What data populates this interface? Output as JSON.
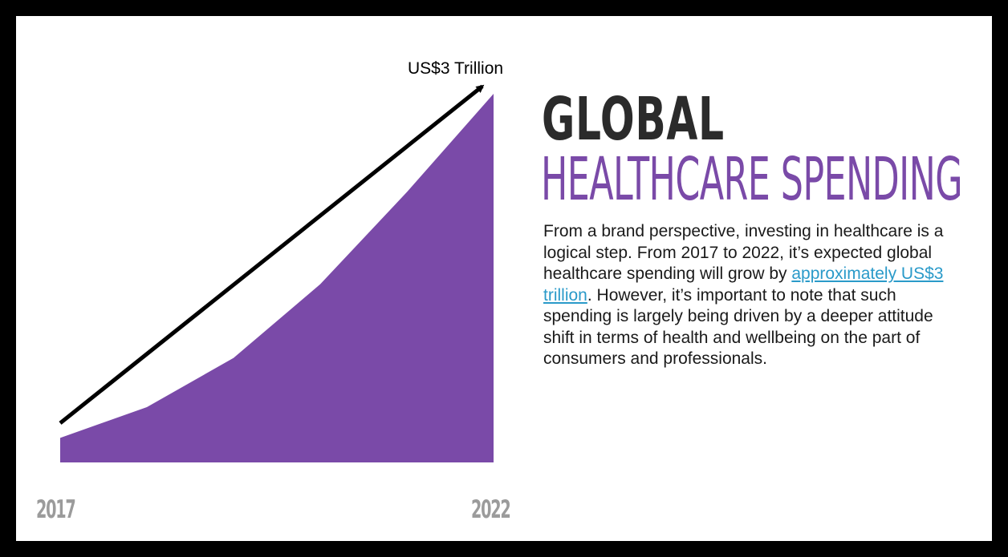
{
  "accent_color": "#7a4aa8",
  "link_color": "#2a9ac9",
  "chart_data": {
    "type": "area",
    "x": [
      2017,
      2018,
      2019,
      2020,
      2021,
      2022
    ],
    "x_tick_labels": [
      "2017",
      "2022"
    ],
    "values": [
      0.2,
      0.45,
      0.85,
      1.45,
      2.2,
      3.0
    ],
    "ylim": [
      0,
      3
    ],
    "xlim": [
      2017,
      2022
    ],
    "grid": false,
    "annotation": "US$3 Trillion",
    "trend_arrow": {
      "from": [
        2017,
        0.32
      ],
      "to": [
        2022,
        3.1
      ]
    },
    "fill_color": "#7a4aa8"
  },
  "heading": {
    "line1": "GLOBAL",
    "line2": "HEALTHCARE SPENDING"
  },
  "body": {
    "text_before": "From a brand perspective, investing in healthcare is a logical step. From 2017 to 2022, it’s expected global healthcare spending will grow by ",
    "link_text": "approximately US$3 trillion",
    "text_after": ". However, it’s important to note that such spending is largely being driven by a deeper attitude shift in terms of health and wellbeing on the part of consumers and professionals."
  }
}
